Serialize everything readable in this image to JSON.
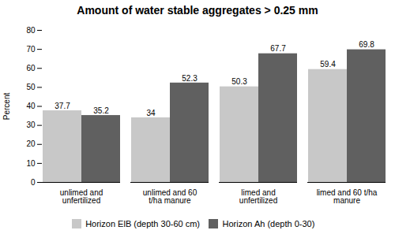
{
  "chart_data": {
    "type": "bar",
    "title": "Amount of water stable aggregates > 0.25 mm",
    "ylabel": "Percent",
    "categories": [
      "unlimed and\nunfertilized",
      "unlimed and 60\nt/ha manure",
      "limed and\nunfertilized",
      "limed and 60 t/ha\nmanure"
    ],
    "series": [
      {
        "name": "Horizon ElB (depth 30-60 cm)",
        "color": "#c8c8c8",
        "values": [
          37.7,
          34.0,
          50.3,
          59.4
        ]
      },
      {
        "name": "Horizon Ah (depth 0-30)",
        "color": "#606060",
        "values": [
          35.2,
          52.3,
          67.7,
          69.8
        ]
      }
    ],
    "ylim": [
      0,
      80
    ],
    "yticks": [
      0,
      10,
      20,
      30,
      40,
      50,
      60,
      70,
      80
    ],
    "data_labels": true,
    "grid": false,
    "legend": "bottom"
  }
}
